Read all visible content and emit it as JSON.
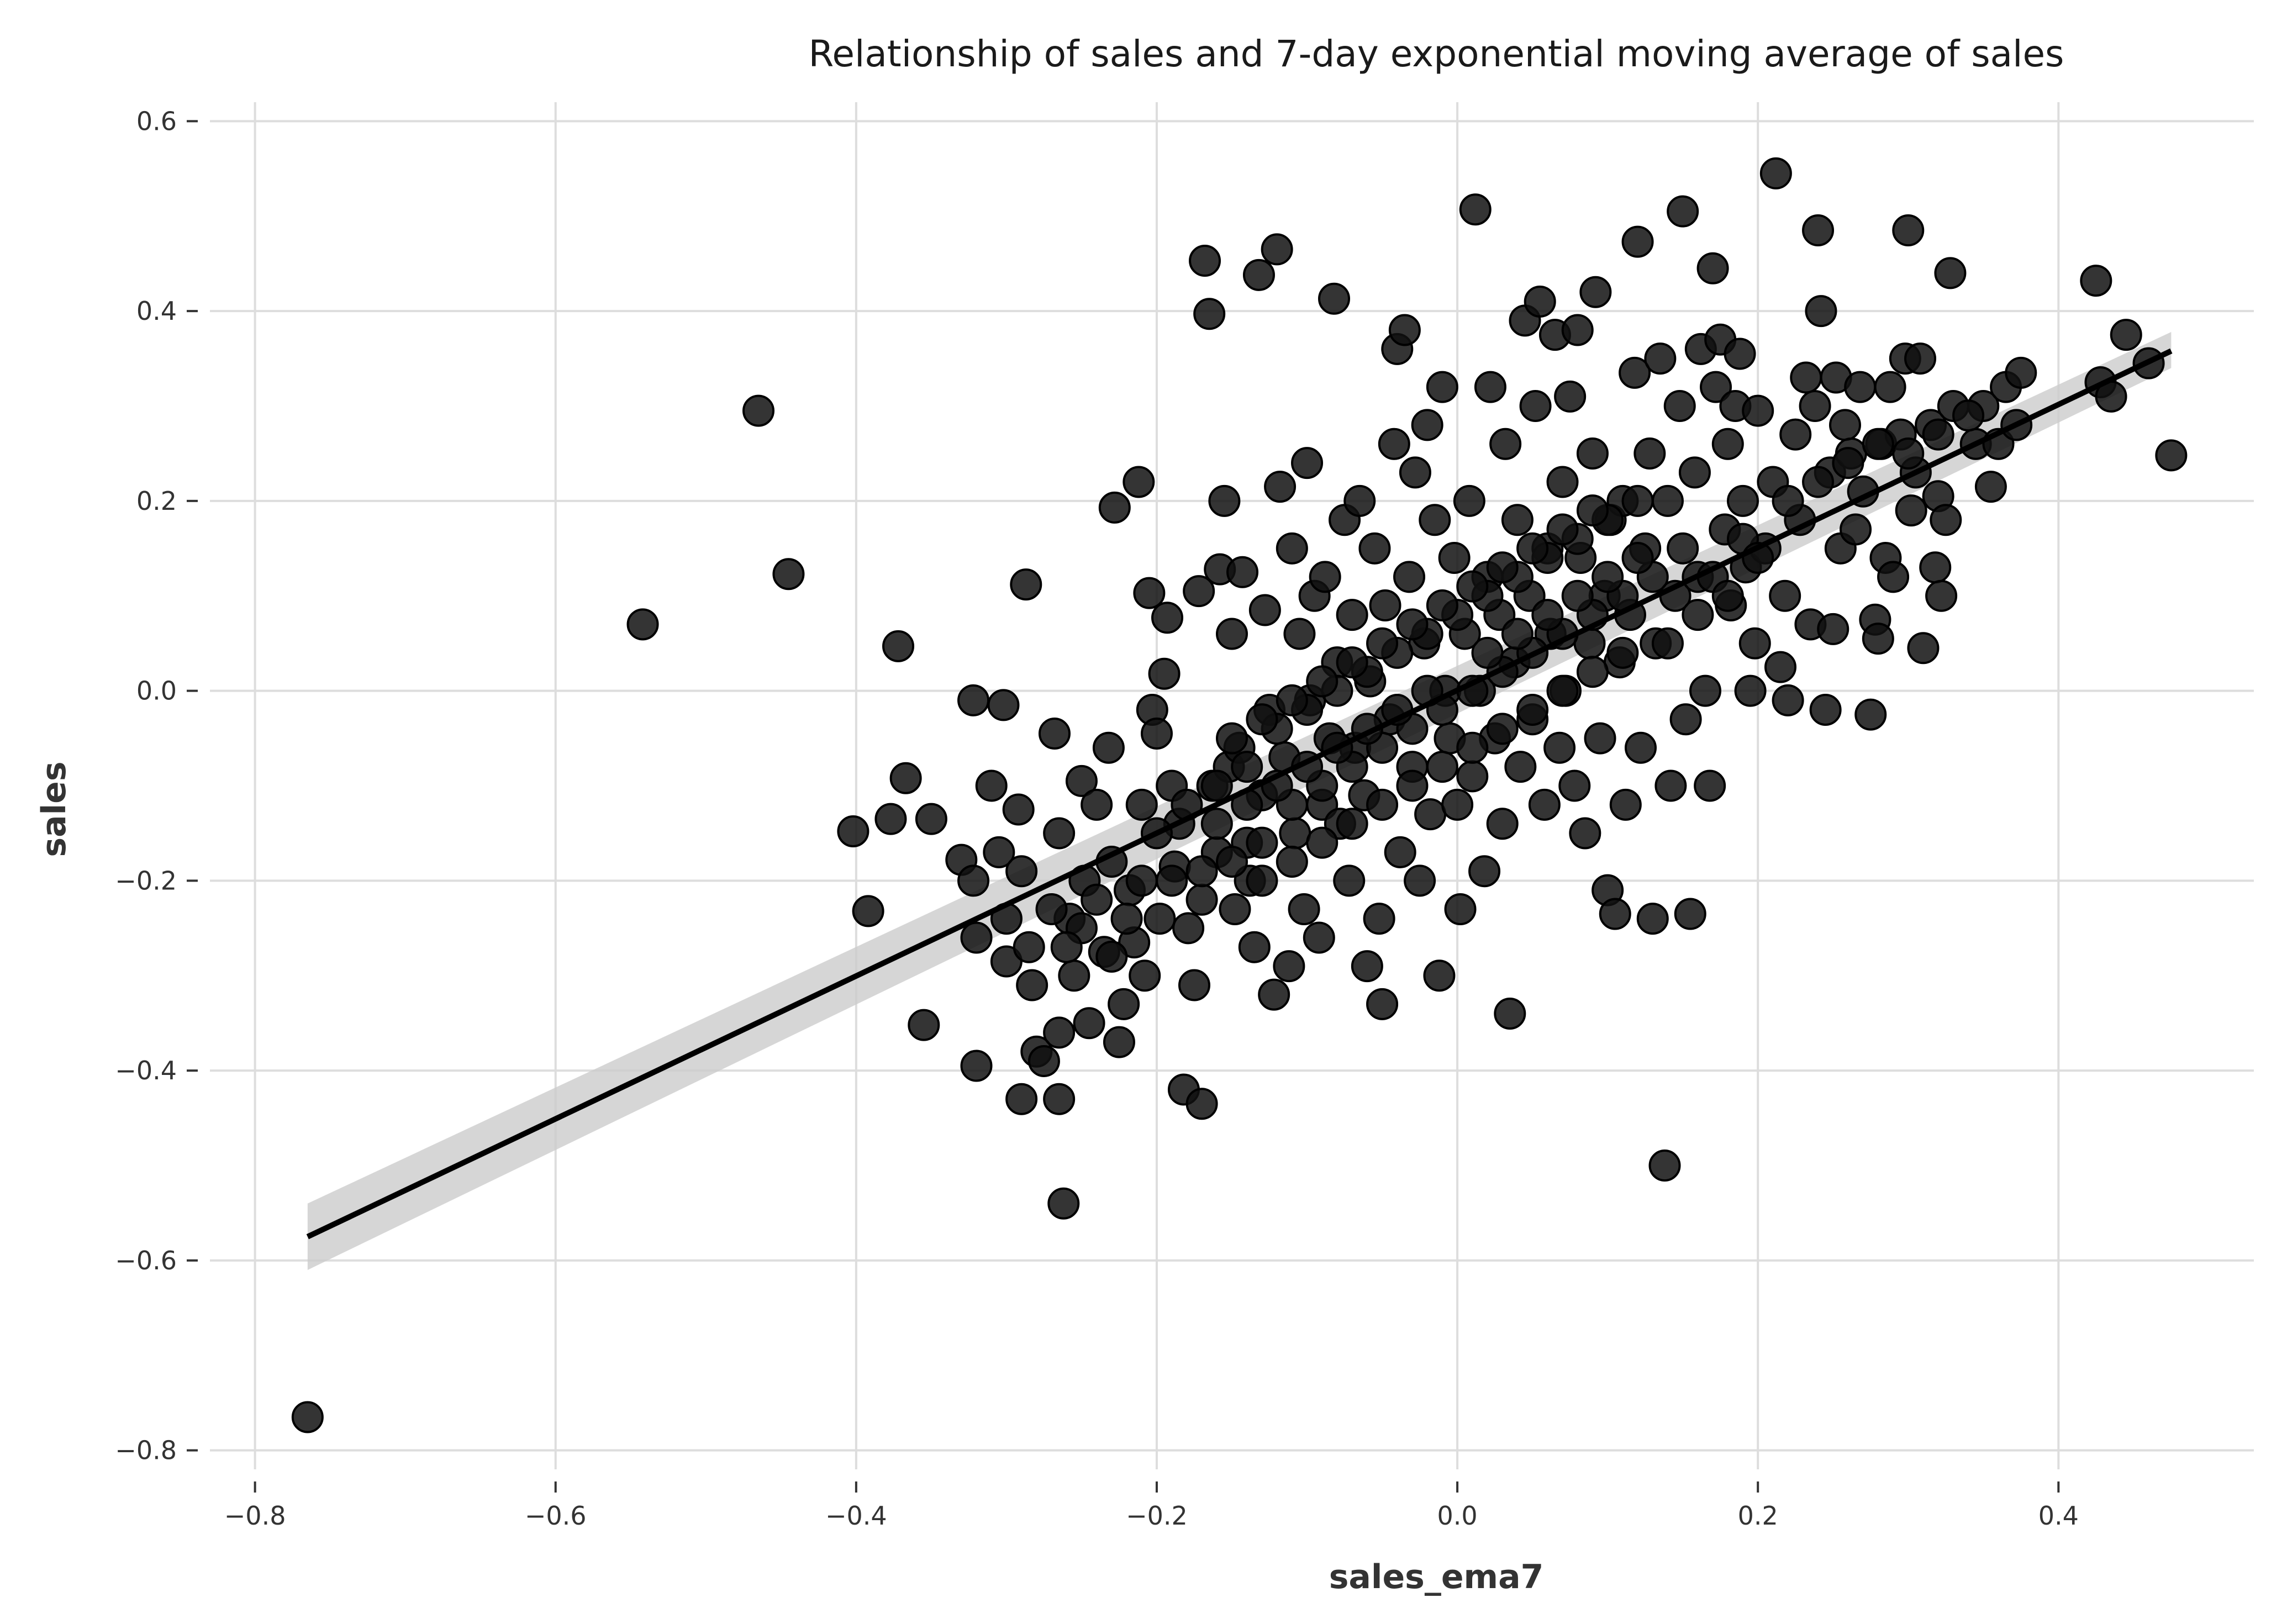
{
  "chart_data": {
    "type": "scatter",
    "title": "Relationship of sales and 7-day exponential moving average of sales",
    "xlabel": "sales_ema7",
    "ylabel": "sales",
    "xlim": [
      -0.83,
      0.53
    ],
    "ylim": [
      -0.82,
      0.62
    ],
    "xticks": [
      -0.8,
      -0.6,
      -0.4,
      -0.2,
      0.0,
      0.2,
      0.4
    ],
    "yticks": [
      -0.8,
      -0.6,
      -0.4,
      -0.2,
      0.0,
      0.2,
      0.4,
      0.6
    ],
    "xtick_labels": [
      "−0.8",
      "−0.6",
      "−0.4",
      "−0.2",
      "0.0",
      "0.2",
      "0.4"
    ],
    "ytick_labels": [
      "−0.8",
      "−0.6",
      "−0.4",
      "−0.2",
      "0.0",
      "0.2",
      "0.4",
      "0.6"
    ],
    "grid": true,
    "colors": {
      "points": "#111111",
      "line": "#000000",
      "band": "#cccccc",
      "grid": "#dddddd"
    },
    "regression": {
      "x": [
        -0.765,
        0.475
      ],
      "y": [
        -0.575,
        0.358
      ],
      "ci_lower": [
        -0.61,
        0.34
      ],
      "ci_upper": [
        -0.54,
        0.378
      ]
    },
    "points": [
      [
        -0.765,
        -0.765
      ],
      [
        -0.542,
        0.07
      ],
      [
        -0.465,
        0.295
      ],
      [
        -0.445,
        0.123
      ],
      [
        -0.402,
        -0.148
      ],
      [
        -0.392,
        -0.232
      ],
      [
        -0.372,
        0.047
      ],
      [
        -0.367,
        -0.092
      ],
      [
        -0.377,
        -0.135
      ],
      [
        -0.35,
        -0.135
      ],
      [
        -0.355,
        -0.352
      ],
      [
        -0.33,
        -0.178
      ],
      [
        -0.322,
        -0.2
      ],
      [
        -0.32,
        -0.26
      ],
      [
        -0.32,
        -0.395
      ],
      [
        -0.322,
        -0.01
      ],
      [
        -0.302,
        -0.015
      ],
      [
        -0.31,
        -0.1
      ],
      [
        -0.305,
        -0.17
      ],
      [
        -0.3,
        -0.24
      ],
      [
        -0.3,
        -0.285
      ],
      [
        -0.292,
        -0.125
      ],
      [
        -0.29,
        -0.19
      ],
      [
        -0.287,
        0.112
      ],
      [
        -0.285,
        -0.27
      ],
      [
        -0.283,
        -0.31
      ],
      [
        -0.28,
        -0.38
      ],
      [
        -0.29,
        -0.43
      ],
      [
        -0.275,
        -0.39
      ],
      [
        -0.268,
        -0.045
      ],
      [
        -0.265,
        -0.15
      ],
      [
        -0.265,
        -0.36
      ],
      [
        -0.265,
        -0.43
      ],
      [
        -0.262,
        -0.54
      ],
      [
        -0.258,
        -0.24
      ],
      [
        -0.255,
        -0.3
      ],
      [
        -0.25,
        -0.095
      ],
      [
        -0.248,
        -0.2
      ],
      [
        -0.245,
        -0.35
      ],
      [
        -0.24,
        -0.12
      ],
      [
        -0.235,
        -0.275
      ],
      [
        -0.232,
        -0.06
      ],
      [
        -0.23,
        -0.18
      ],
      [
        -0.228,
        0.193
      ],
      [
        -0.225,
        -0.37
      ],
      [
        -0.222,
        -0.33
      ],
      [
        -0.218,
        -0.21
      ],
      [
        -0.215,
        -0.265
      ],
      [
        -0.212,
        0.22
      ],
      [
        -0.21,
        -0.12
      ],
      [
        -0.208,
        -0.3
      ],
      [
        -0.205,
        0.103
      ],
      [
        -0.203,
        -0.02
      ],
      [
        -0.2,
        -0.045
      ],
      [
        -0.198,
        -0.24
      ],
      [
        -0.195,
        0.018
      ],
      [
        -0.193,
        0.077
      ],
      [
        -0.19,
        -0.1
      ],
      [
        -0.188,
        -0.185
      ],
      [
        -0.185,
        -0.14
      ],
      [
        -0.182,
        -0.42
      ],
      [
        -0.179,
        -0.25
      ],
      [
        -0.175,
        -0.31
      ],
      [
        -0.172,
        0.105
      ],
      [
        -0.17,
        -0.435
      ],
      [
        -0.168,
        0.453
      ],
      [
        -0.165,
        0.397
      ],
      [
        -0.163,
        -0.1
      ],
      [
        -0.16,
        -0.17
      ],
      [
        -0.158,
        0.128
      ],
      [
        -0.155,
        0.2
      ],
      [
        -0.152,
        -0.08
      ],
      [
        -0.15,
        0.06
      ],
      [
        -0.148,
        -0.23
      ],
      [
        -0.145,
        -0.06
      ],
      [
        -0.143,
        0.125
      ],
      [
        -0.14,
        -0.16
      ],
      [
        -0.138,
        -0.2
      ],
      [
        -0.135,
        -0.27
      ],
      [
        -0.132,
        0.438
      ],
      [
        -0.13,
        -0.11
      ],
      [
        -0.128,
        0.085
      ],
      [
        -0.125,
        -0.02
      ],
      [
        -0.122,
        -0.32
      ],
      [
        -0.12,
        0.465
      ],
      [
        -0.118,
        0.215
      ],
      [
        -0.115,
        -0.07
      ],
      [
        -0.112,
        -0.29
      ],
      [
        -0.11,
        0.15
      ],
      [
        -0.108,
        -0.15
      ],
      [
        -0.105,
        0.06
      ],
      [
        -0.102,
        -0.23
      ],
      [
        -0.1,
        0.24
      ],
      [
        -0.098,
        -0.01
      ],
      [
        -0.095,
        0.1
      ],
      [
        -0.092,
        -0.26
      ],
      [
        -0.09,
        -0.12
      ],
      [
        -0.088,
        0.12
      ],
      [
        -0.085,
        -0.05
      ],
      [
        -0.082,
        0.413
      ],
      [
        -0.08,
        0.03
      ],
      [
        -0.078,
        -0.14
      ],
      [
        -0.075,
        0.18
      ],
      [
        -0.072,
        -0.2
      ],
      [
        -0.07,
        0.08
      ],
      [
        -0.068,
        -0.06
      ],
      [
        -0.065,
        0.2
      ],
      [
        -0.062,
        -0.11
      ],
      [
        -0.06,
        -0.29
      ],
      [
        -0.058,
        0.01
      ],
      [
        -0.055,
        0.15
      ],
      [
        -0.052,
        -0.24
      ],
      [
        -0.05,
        -0.33
      ],
      [
        -0.048,
        0.09
      ],
      [
        -0.045,
        -0.03
      ],
      [
        -0.042,
        0.26
      ],
      [
        -0.04,
        0.36
      ],
      [
        -0.038,
        -0.17
      ],
      [
        -0.035,
        0.38
      ],
      [
        -0.032,
        0.12
      ],
      [
        -0.03,
        -0.08
      ],
      [
        -0.028,
        0.23
      ],
      [
        -0.025,
        -0.2
      ],
      [
        -0.022,
        0.05
      ],
      [
        -0.02,
        0.28
      ],
      [
        -0.018,
        -0.13
      ],
      [
        -0.015,
        0.18
      ],
      [
        -0.012,
        -0.3
      ],
      [
        -0.01,
        0.32
      ],
      [
        -0.008,
        0.0
      ],
      [
        -0.005,
        -0.05
      ],
      [
        -0.002,
        0.14
      ],
      [
        0.0,
        -0.12
      ],
      [
        0.002,
        -0.23
      ],
      [
        0.005,
        0.06
      ],
      [
        0.008,
        0.2
      ],
      [
        0.01,
        -0.09
      ],
      [
        0.012,
        0.507
      ],
      [
        0.015,
        0.0
      ],
      [
        0.018,
        -0.19
      ],
      [
        0.02,
        0.12
      ],
      [
        0.022,
        0.32
      ],
      [
        0.025,
        -0.05
      ],
      [
        0.028,
        0.08
      ],
      [
        0.03,
        -0.14
      ],
      [
        0.032,
        0.26
      ],
      [
        0.035,
        -0.34
      ],
      [
        0.038,
        0.03
      ],
      [
        0.04,
        0.18
      ],
      [
        0.042,
        -0.08
      ],
      [
        0.045,
        0.39
      ],
      [
        0.048,
        0.1
      ],
      [
        0.05,
        -0.03
      ],
      [
        0.052,
        0.3
      ],
      [
        0.055,
        0.41
      ],
      [
        0.058,
        -0.12
      ],
      [
        0.06,
        0.15
      ],
      [
        0.062,
        0.06
      ],
      [
        0.065,
        0.375
      ],
      [
        0.068,
        -0.06
      ],
      [
        0.07,
        0.22
      ],
      [
        0.072,
        0.0
      ],
      [
        0.075,
        0.31
      ],
      [
        0.078,
        -0.1
      ],
      [
        0.08,
        0.38
      ],
      [
        0.082,
        0.14
      ],
      [
        0.085,
        -0.15
      ],
      [
        0.088,
        0.05
      ],
      [
        0.09,
        0.25
      ],
      [
        0.092,
        0.42
      ],
      [
        0.095,
        -0.05
      ],
      [
        0.098,
        0.1
      ],
      [
        0.1,
        -0.21
      ],
      [
        0.102,
        0.18
      ],
      [
        0.105,
        -0.235
      ],
      [
        0.108,
        0.03
      ],
      [
        0.11,
        0.2
      ],
      [
        0.112,
        -0.12
      ],
      [
        0.115,
        0.08
      ],
      [
        0.118,
        0.335
      ],
      [
        0.12,
        0.473
      ],
      [
        0.122,
        -0.06
      ],
      [
        0.125,
        0.15
      ],
      [
        0.128,
        0.25
      ],
      [
        0.13,
        -0.24
      ],
      [
        0.132,
        0.05
      ],
      [
        0.135,
        0.35
      ],
      [
        0.138,
        -0.5
      ],
      [
        0.14,
        0.2
      ],
      [
        0.142,
        -0.1
      ],
      [
        0.145,
        0.1
      ],
      [
        0.148,
        0.3
      ],
      [
        0.15,
        0.505
      ],
      [
        0.152,
        -0.03
      ],
      [
        0.155,
        -0.235
      ],
      [
        0.158,
        0.23
      ],
      [
        0.16,
        0.12
      ],
      [
        0.162,
        0.36
      ],
      [
        0.165,
        0.0
      ],
      [
        0.168,
        -0.1
      ],
      [
        0.17,
        0.445
      ],
      [
        0.172,
        0.32
      ],
      [
        0.175,
        0.37
      ],
      [
        0.178,
        0.17
      ],
      [
        0.18,
        0.26
      ],
      [
        0.182,
        0.09
      ],
      [
        0.185,
        0.3
      ],
      [
        0.188,
        0.355
      ],
      [
        0.19,
        0.2
      ],
      [
        0.192,
        0.13
      ],
      [
        0.195,
        0.0
      ],
      [
        0.198,
        0.05
      ],
      [
        0.2,
        0.295
      ],
      [
        0.205,
        0.15
      ],
      [
        0.21,
        0.22
      ],
      [
        0.212,
        0.545
      ],
      [
        0.215,
        0.025
      ],
      [
        0.218,
        0.1
      ],
      [
        0.22,
        -0.01
      ],
      [
        0.225,
        0.27
      ],
      [
        0.228,
        0.18
      ],
      [
        0.232,
        0.33
      ],
      [
        0.235,
        0.07
      ],
      [
        0.238,
        0.3
      ],
      [
        0.24,
        0.485
      ],
      [
        0.242,
        0.4
      ],
      [
        0.245,
        -0.02
      ],
      [
        0.248,
        0.23
      ],
      [
        0.25,
        0.065
      ],
      [
        0.252,
        0.33
      ],
      [
        0.255,
        0.15
      ],
      [
        0.258,
        0.28
      ],
      [
        0.262,
        0.25
      ],
      [
        0.265,
        0.17
      ],
      [
        0.268,
        0.32
      ],
      [
        0.27,
        0.21
      ],
      [
        0.275,
        -0.025
      ],
      [
        0.278,
        0.075
      ],
      [
        0.28,
        0.055
      ],
      [
        0.282,
        0.26
      ],
      [
        0.285,
        0.14
      ],
      [
        0.288,
        0.32
      ],
      [
        0.29,
        0.12
      ],
      [
        0.295,
        0.27
      ],
      [
        0.298,
        0.35
      ],
      [
        0.3,
        0.485
      ],
      [
        0.302,
        0.19
      ],
      [
        0.305,
        0.23
      ],
      [
        0.308,
        0.35
      ],
      [
        0.31,
        0.045
      ],
      [
        0.315,
        0.28
      ],
      [
        0.318,
        0.13
      ],
      [
        0.32,
        0.205
      ],
      [
        0.322,
        0.1
      ],
      [
        0.325,
        0.18
      ],
      [
        0.328,
        0.44
      ],
      [
        0.33,
        0.3
      ],
      [
        0.345,
        0.26
      ],
      [
        0.35,
        0.3
      ],
      [
        0.355,
        0.215
      ],
      [
        0.36,
        0.26
      ],
      [
        0.365,
        0.32
      ],
      [
        0.372,
        0.28
      ],
      [
        0.375,
        0.335
      ],
      [
        0.425,
        0.432
      ],
      [
        0.428,
        0.325
      ],
      [
        0.435,
        0.31
      ],
      [
        0.445,
        0.375
      ],
      [
        0.46,
        0.345
      ],
      [
        0.475,
        0.248
      ],
      [
        -0.2,
        -0.15
      ],
      [
        -0.19,
        -0.2
      ],
      [
        -0.18,
        -0.12
      ],
      [
        -0.17,
        -0.22
      ],
      [
        -0.16,
        -0.1
      ],
      [
        -0.15,
        -0.18
      ],
      [
        -0.14,
        -0.08
      ],
      [
        -0.13,
        -0.16
      ],
      [
        -0.12,
        -0.04
      ],
      [
        -0.11,
        -0.12
      ],
      [
        -0.1,
        -0.02
      ],
      [
        -0.09,
        -0.1
      ],
      [
        -0.08,
        0.0
      ],
      [
        -0.07,
        -0.08
      ],
      [
        -0.06,
        0.02
      ],
      [
        -0.05,
        -0.06
      ],
      [
        -0.04,
        0.04
      ],
      [
        -0.03,
        -0.04
      ],
      [
        -0.02,
        0.06
      ],
      [
        -0.01,
        -0.02
      ],
      [
        0.0,
        0.08
      ],
      [
        0.01,
        0.0
      ],
      [
        0.02,
        0.1
      ],
      [
        0.03,
        0.02
      ],
      [
        0.04,
        0.12
      ],
      [
        0.05,
        0.04
      ],
      [
        0.06,
        0.14
      ],
      [
        0.07,
        0.06
      ],
      [
        0.08,
        0.16
      ],
      [
        0.09,
        0.08
      ],
      [
        0.1,
        0.18
      ],
      [
        0.11,
        0.1
      ],
      [
        0.12,
        0.2
      ],
      [
        0.13,
        0.12
      ],
      [
        0.14,
        0.05
      ],
      [
        0.15,
        0.15
      ],
      [
        -0.16,
        -0.14
      ],
      [
        -0.14,
        -0.12
      ],
      [
        -0.12,
        -0.1
      ],
      [
        -0.1,
        -0.08
      ],
      [
        -0.08,
        -0.06
      ],
      [
        -0.06,
        -0.04
      ],
      [
        -0.04,
        -0.02
      ],
      [
        -0.02,
        0.0
      ],
      [
        0.02,
        0.04
      ],
      [
        0.04,
        0.06
      ],
      [
        0.06,
        0.08
      ],
      [
        0.08,
        0.1
      ],
      [
        0.1,
        0.12
      ],
      [
        0.12,
        0.14
      ],
      [
        -0.13,
        -0.2
      ],
      [
        -0.11,
        -0.18
      ],
      [
        -0.09,
        -0.16
      ],
      [
        -0.07,
        -0.14
      ],
      [
        -0.05,
        -0.12
      ],
      [
        -0.03,
        -0.1
      ],
      [
        -0.01,
        -0.08
      ],
      [
        0.01,
        -0.06
      ],
      [
        0.03,
        -0.04
      ],
      [
        0.05,
        -0.02
      ],
      [
        0.07,
        0.0
      ],
      [
        0.09,
        0.02
      ],
      [
        0.11,
        0.04
      ],
      [
        -0.15,
        -0.05
      ],
      [
        -0.13,
        -0.03
      ],
      [
        -0.11,
        -0.01
      ],
      [
        -0.09,
        0.01
      ],
      [
        -0.07,
        0.03
      ],
      [
        -0.05,
        0.05
      ],
      [
        -0.03,
        0.07
      ],
      [
        -0.01,
        0.09
      ],
      [
        0.01,
        0.11
      ],
      [
        0.03,
        0.13
      ],
      [
        0.05,
        0.15
      ],
      [
        0.07,
        0.17
      ],
      [
        0.09,
        0.19
      ],
      [
        -0.17,
        -0.19
      ],
      [
        -0.25,
        -0.25
      ],
      [
        -0.24,
        -0.22
      ],
      [
        -0.23,
        -0.28
      ],
      [
        -0.22,
        -0.24
      ],
      [
        -0.21,
        -0.2
      ],
      [
        -0.26,
        -0.27
      ],
      [
        -0.27,
        -0.23
      ],
      [
        0.16,
        0.08
      ],
      [
        0.17,
        0.12
      ],
      [
        0.18,
        0.1
      ],
      [
        0.19,
        0.16
      ],
      [
        0.2,
        0.14
      ],
      [
        0.22,
        0.2
      ],
      [
        0.24,
        0.22
      ],
      [
        0.26,
        0.24
      ],
      [
        0.28,
        0.26
      ],
      [
        0.3,
        0.25
      ],
      [
        0.32,
        0.27
      ],
      [
        0.34,
        0.29
      ]
    ]
  }
}
